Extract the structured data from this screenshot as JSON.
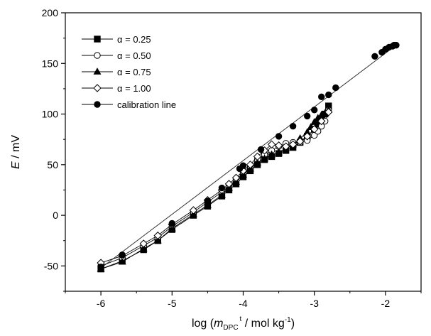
{
  "chart_data": {
    "type": "scatter",
    "xlabel": "log (m_DPC^t / mol kg^-1)",
    "xlabel_parts": {
      "prefix": "log (",
      "m": "m",
      "sub": "DPC",
      "sup": "t",
      "mid": " / mol kg",
      "unit_sup": "-1",
      "suffix": ")"
    },
    "ylabel": "E / mV",
    "ylabel_parts": {
      "var": "E",
      "rest": " / mV"
    },
    "xlim": [
      -6.5,
      -1.5
    ],
    "ylim": [
      -75,
      200
    ],
    "x_ticks": [
      -6,
      -5,
      -4,
      -3,
      -2
    ],
    "y_ticks": [
      -50,
      0,
      50,
      100,
      150,
      200
    ],
    "x_tick_labels": [
      "-6",
      "-5",
      "-4",
      "-3",
      "-2"
    ],
    "y_tick_labels": [
      "-50",
      "0",
      "50",
      "100",
      "150",
      "200"
    ],
    "grid": false,
    "legend_position": "top-left",
    "colors": {
      "axis": "#000000",
      "marker": "#000000"
    },
    "calibration_line": {
      "x": [
        -6,
        -1.85
      ],
      "y": [
        -52,
        168
      ]
    },
    "series": [
      {
        "name": "α = 0.25",
        "marker": "square-filled",
        "x": [
          -6.0,
          -5.7,
          -5.4,
          -5.2,
          -5.0,
          -4.7,
          -4.5,
          -4.3,
          -4.2,
          -4.1,
          -4.0,
          -3.9,
          -3.8,
          -3.7,
          -3.6,
          -3.5,
          -3.4,
          -3.3,
          -3.2,
          -3.1,
          -3.0,
          -2.95,
          -2.9,
          -2.85,
          -2.8
        ],
        "y": [
          -53,
          -45,
          -34,
          -25,
          -14,
          0,
          9,
          19,
          25,
          31,
          38,
          44,
          50,
          55,
          58,
          61,
          64,
          67,
          72,
          78,
          85,
          90,
          95,
          100,
          108
        ]
      },
      {
        "name": "α = 0.50",
        "marker": "circle-open",
        "x": [
          -6.0,
          -5.7,
          -5.4,
          -5.2,
          -5.0,
          -4.7,
          -4.5,
          -4.3,
          -4.2,
          -4.1,
          -4.0,
          -3.9,
          -3.8,
          -3.7,
          -3.6,
          -3.5,
          -3.4,
          -3.3,
          -3.2,
          -3.1,
          -3.0,
          -2.95,
          -2.9,
          -2.85,
          -2.8
        ],
        "y": [
          -50,
          -42,
          -30,
          -22,
          -11,
          3,
          13,
          23,
          29,
          35,
          42,
          48,
          55,
          60,
          64,
          68,
          71,
          72,
          72,
          74,
          79,
          83,
          88,
          93,
          104
        ]
      },
      {
        "name": "α = 0.75",
        "marker": "triangle-filled",
        "x": [
          -6.0,
          -5.7,
          -5.4,
          -5.2,
          -5.0,
          -4.7,
          -4.5,
          -4.3,
          -4.2,
          -4.1,
          -4.0,
          -3.9,
          -3.8,
          -3.7,
          -3.6,
          -3.5,
          -3.4,
          -3.3,
          -3.2,
          -3.1,
          -3.05,
          -3.0,
          -2.95,
          -2.9,
          -2.85,
          -2.8
        ],
        "y": [
          -53,
          -46,
          -33,
          -25,
          -13,
          1,
          10,
          20,
          27,
          33,
          40,
          46,
          52,
          56,
          60,
          62,
          66,
          70,
          76,
          82,
          87,
          92,
          96,
          99,
          101,
          104
        ]
      },
      {
        "name": "α = 1.00",
        "marker": "diamond-open",
        "x": [
          -6.0,
          -5.7,
          -5.4,
          -5.2,
          -5.0,
          -4.7,
          -4.5,
          -4.3,
          -4.2,
          -4.1,
          -4.0,
          -3.9,
          -3.8,
          -3.7,
          -3.6,
          -3.5,
          -3.4,
          -3.3,
          -3.2,
          -3.1,
          -3.0,
          -2.9,
          -2.8
        ],
        "y": [
          -47,
          -40,
          -28,
          -20,
          -9,
          5,
          15,
          25,
          31,
          37,
          44,
          50,
          58,
          64,
          70,
          69,
          68,
          70,
          73,
          78,
          85,
          93,
          102
        ]
      },
      {
        "name": "calibration line",
        "marker": "circle-filled",
        "x": [
          -6.0,
          -5.7,
          -5.0,
          -4.5,
          -4.3,
          -4.05,
          -4.0,
          -3.75,
          -3.5,
          -3.3,
          -3.1,
          -3.0,
          -2.9,
          -2.8,
          -2.7,
          -2.15,
          -2.05,
          -2.0,
          -1.95,
          -1.9,
          -1.88,
          -1.85
        ],
        "y": [
          -51,
          -39,
          -8,
          14,
          27,
          46,
          49,
          65,
          78,
          88,
          98,
          104,
          117,
          119,
          126,
          157,
          161,
          164,
          166,
          167,
          168,
          168
        ]
      }
    ]
  }
}
